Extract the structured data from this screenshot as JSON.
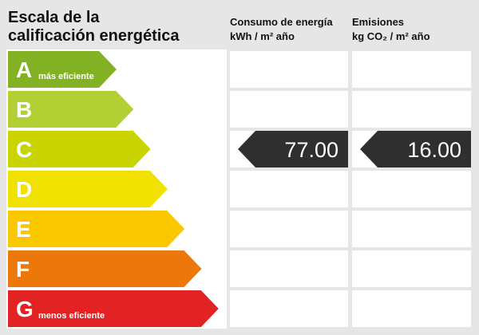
{
  "title": [
    "Escala de la",
    "calificación energética"
  ],
  "ratings": [
    {
      "letter": "A",
      "note": "más eficiente",
      "color": "#82b124"
    },
    {
      "letter": "B",
      "color": "#b2d033"
    },
    {
      "letter": "C",
      "color": "#c9d400"
    },
    {
      "letter": "D",
      "color": "#f0e100"
    },
    {
      "letter": "E",
      "color": "#fbc800"
    },
    {
      "letter": "F",
      "color": "#ec780c"
    },
    {
      "letter": "G",
      "note": "menos eficiente",
      "color": "#e32224"
    }
  ],
  "columns": [
    {
      "title": "Consumo de energía",
      "unit": "kWh / m² año",
      "rating": "C",
      "value": "77.00"
    },
    {
      "title": "Emisiones",
      "unit": "kg CO₂ / m² año",
      "rating": "C",
      "value": "16.00"
    }
  ]
}
